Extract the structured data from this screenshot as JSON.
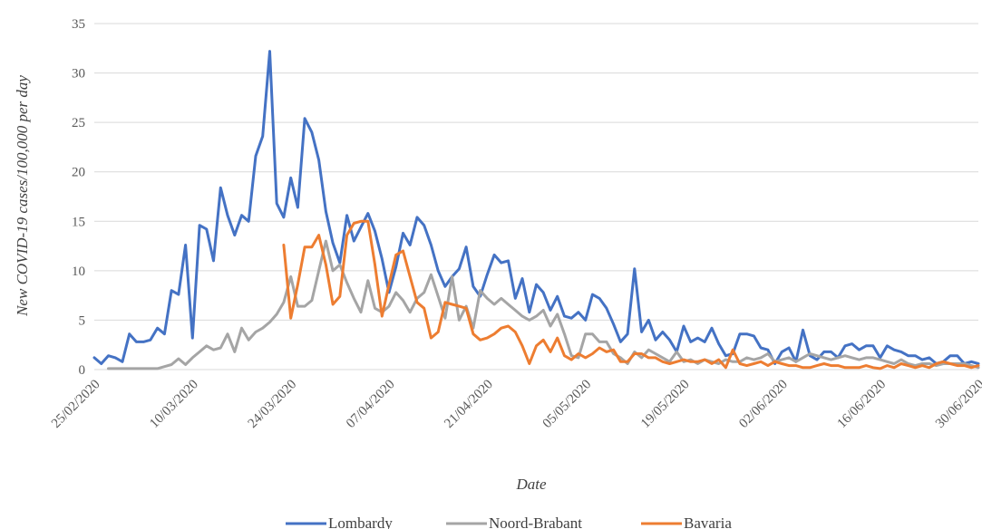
{
  "chart_data": {
    "type": "line",
    "title": "",
    "xlabel": "Date",
    "ylabel": "New COVID-19 cases/100,000 per day",
    "x_start": "2020-02-25",
    "x_end": "2020-06-30",
    "ylim": [
      0,
      35
    ],
    "y_ticks": [
      0,
      5,
      10,
      15,
      20,
      25,
      30,
      35
    ],
    "x_tick_labels": [
      "25/02/2020",
      "10/03/2020",
      "24/03/2020",
      "07/04/2020",
      "21/04/2020",
      "05/05/2020",
      "19/05/2020",
      "02/06/2020",
      "16/06/2020",
      "30/06/2020"
    ],
    "grid": "horizontal",
    "legend_position": "bottom",
    "series": [
      {
        "name": "Lombardy",
        "color": "#4472C4",
        "x": [
          "2020-02-25",
          "2020-02-26",
          "2020-02-27",
          "2020-02-28",
          "2020-02-29",
          "2020-03-01",
          "2020-03-02",
          "2020-03-03",
          "2020-03-04",
          "2020-03-05",
          "2020-03-06",
          "2020-03-07",
          "2020-03-08",
          "2020-03-09",
          "2020-03-10",
          "2020-03-11",
          "2020-03-12",
          "2020-03-13",
          "2020-03-14",
          "2020-03-15",
          "2020-03-16",
          "2020-03-17",
          "2020-03-18",
          "2020-03-19",
          "2020-03-20",
          "2020-03-21",
          "2020-03-22",
          "2020-03-23",
          "2020-03-24",
          "2020-03-25",
          "2020-03-26",
          "2020-03-27",
          "2020-03-28",
          "2020-03-29",
          "2020-03-30",
          "2020-03-31",
          "2020-04-01",
          "2020-04-02",
          "2020-04-03",
          "2020-04-04",
          "2020-04-05",
          "2020-04-06",
          "2020-04-07",
          "2020-04-08",
          "2020-04-09",
          "2020-04-10",
          "2020-04-11",
          "2020-04-12",
          "2020-04-13",
          "2020-04-14",
          "2020-04-15",
          "2020-04-16",
          "2020-04-17",
          "2020-04-18",
          "2020-04-19",
          "2020-04-20",
          "2020-04-21",
          "2020-04-22",
          "2020-04-23",
          "2020-04-24",
          "2020-04-25",
          "2020-04-26",
          "2020-04-27",
          "2020-04-28",
          "2020-04-29",
          "2020-04-30",
          "2020-05-01",
          "2020-05-02",
          "2020-05-03",
          "2020-05-04",
          "2020-05-05",
          "2020-05-06",
          "2020-05-07",
          "2020-05-08",
          "2020-05-09",
          "2020-05-10",
          "2020-05-11",
          "2020-05-12",
          "2020-05-13",
          "2020-05-14",
          "2020-05-15",
          "2020-05-16",
          "2020-05-17",
          "2020-05-18",
          "2020-05-19",
          "2020-05-20",
          "2020-05-21",
          "2020-05-22",
          "2020-05-23",
          "2020-05-24",
          "2020-05-25",
          "2020-05-26",
          "2020-05-27",
          "2020-05-28",
          "2020-05-29",
          "2020-05-30",
          "2020-05-31",
          "2020-06-01",
          "2020-06-02",
          "2020-06-03",
          "2020-06-04",
          "2020-06-05",
          "2020-06-06",
          "2020-06-07",
          "2020-06-08",
          "2020-06-09",
          "2020-06-10",
          "2020-06-11",
          "2020-06-12",
          "2020-06-13",
          "2020-06-14",
          "2020-06-15",
          "2020-06-16",
          "2020-06-17",
          "2020-06-18",
          "2020-06-19",
          "2020-06-20",
          "2020-06-21",
          "2020-06-22",
          "2020-06-23",
          "2020-06-24",
          "2020-06-25",
          "2020-06-26",
          "2020-06-27",
          "2020-06-28",
          "2020-06-29",
          "2020-06-30"
        ],
        "values": [
          1.2,
          0.6,
          1.4,
          1.2,
          0.8,
          3.6,
          2.8,
          2.8,
          3.0,
          4.2,
          3.6,
          8.0,
          7.6,
          12.6,
          3.2,
          14.6,
          14.2,
          11.0,
          18.4,
          15.6,
          13.6,
          15.6,
          15.0,
          21.6,
          23.6,
          32.2,
          16.8,
          15.4,
          19.4,
          16.4,
          25.4,
          24.0,
          21.2,
          16.0,
          12.8,
          10.8,
          15.6,
          13.0,
          14.4,
          15.8,
          14.0,
          11.2,
          7.8,
          10.4,
          13.8,
          12.6,
          15.4,
          14.6,
          12.6,
          10.0,
          8.4,
          9.4,
          10.2,
          12.4,
          8.4,
          7.4,
          9.6,
          11.6,
          10.8,
          11.0,
          7.2,
          9.2,
          5.8,
          8.6,
          7.8,
          6.0,
          7.4,
          5.4,
          5.2,
          5.8,
          5.0,
          7.6,
          7.2,
          6.2,
          4.6,
          2.8,
          3.6,
          10.2,
          3.8,
          5.0,
          3.0,
          3.8,
          3.0,
          1.8,
          4.4,
          2.8,
          3.2,
          2.8,
          4.2,
          2.6,
          1.4,
          1.6,
          3.6,
          3.6,
          3.4,
          2.2,
          2.0,
          0.6,
          1.8,
          2.2,
          0.8,
          4.0,
          1.4,
          1.0,
          1.8,
          1.8,
          1.2,
          2.4,
          2.6,
          2.0,
          2.4,
          2.4,
          1.2,
          2.4,
          2.0,
          1.8,
          1.4,
          1.4,
          1.0,
          1.2,
          0.6,
          0.8,
          1.4,
          1.4,
          0.6,
          0.8,
          0.6
        ]
      },
      {
        "name": "Noord-Brabant",
        "color": "#A5A5A5",
        "x": [
          "2020-02-27",
          "2020-02-28",
          "2020-02-29",
          "2020-03-01",
          "2020-03-02",
          "2020-03-03",
          "2020-03-04",
          "2020-03-05",
          "2020-03-06",
          "2020-03-07",
          "2020-03-08",
          "2020-03-09",
          "2020-03-10",
          "2020-03-11",
          "2020-03-12",
          "2020-03-13",
          "2020-03-14",
          "2020-03-15",
          "2020-03-16",
          "2020-03-17",
          "2020-03-18",
          "2020-03-19",
          "2020-03-20",
          "2020-03-21",
          "2020-03-22",
          "2020-03-23",
          "2020-03-24",
          "2020-03-25",
          "2020-03-26",
          "2020-03-27",
          "2020-03-28",
          "2020-03-29",
          "2020-03-30",
          "2020-03-31",
          "2020-04-01",
          "2020-04-02",
          "2020-04-03",
          "2020-04-04",
          "2020-04-05",
          "2020-04-06",
          "2020-04-07",
          "2020-04-08",
          "2020-04-09",
          "2020-04-10",
          "2020-04-11",
          "2020-04-12",
          "2020-04-13",
          "2020-04-14",
          "2020-04-15",
          "2020-04-16",
          "2020-04-17",
          "2020-04-18",
          "2020-04-19",
          "2020-04-20",
          "2020-04-21",
          "2020-04-22",
          "2020-04-23",
          "2020-04-24",
          "2020-04-25",
          "2020-04-26",
          "2020-04-27",
          "2020-04-28",
          "2020-04-29",
          "2020-04-30",
          "2020-05-01",
          "2020-05-02",
          "2020-05-03",
          "2020-05-04",
          "2020-05-05",
          "2020-05-06",
          "2020-05-07",
          "2020-05-08",
          "2020-05-09",
          "2020-05-10",
          "2020-05-11",
          "2020-05-12",
          "2020-05-13",
          "2020-05-14",
          "2020-05-15",
          "2020-05-16",
          "2020-05-17",
          "2020-05-18",
          "2020-05-19",
          "2020-05-20",
          "2020-05-21",
          "2020-05-22",
          "2020-05-23",
          "2020-05-24",
          "2020-05-25",
          "2020-05-26",
          "2020-05-27",
          "2020-05-28",
          "2020-05-29",
          "2020-05-30",
          "2020-05-31",
          "2020-06-01",
          "2020-06-02",
          "2020-06-03",
          "2020-06-04",
          "2020-06-05",
          "2020-06-06",
          "2020-06-07",
          "2020-06-08",
          "2020-06-09",
          "2020-06-10",
          "2020-06-11",
          "2020-06-12",
          "2020-06-13",
          "2020-06-14",
          "2020-06-15",
          "2020-06-16",
          "2020-06-17",
          "2020-06-18",
          "2020-06-19",
          "2020-06-20",
          "2020-06-21",
          "2020-06-22",
          "2020-06-23",
          "2020-06-24",
          "2020-06-25",
          "2020-06-26",
          "2020-06-27",
          "2020-06-28",
          "2020-06-29",
          "2020-06-30"
        ],
        "values": [
          0.1,
          0.1,
          0.1,
          0.1,
          0.1,
          0.1,
          0.1,
          0.1,
          0.3,
          0.5,
          1.1,
          0.5,
          1.2,
          1.8,
          2.4,
          2.0,
          2.2,
          3.6,
          1.8,
          4.2,
          3.0,
          3.8,
          4.2,
          4.8,
          5.6,
          6.8,
          9.4,
          6.4,
          6.4,
          7.0,
          10.0,
          13.0,
          10.0,
          10.6,
          8.8,
          7.2,
          5.8,
          9.0,
          6.2,
          5.8,
          6.4,
          7.8,
          7.0,
          5.8,
          7.2,
          7.8,
          9.6,
          7.4,
          5.2,
          9.4,
          5.0,
          6.4,
          4.2,
          8.0,
          7.2,
          6.6,
          7.2,
          6.6,
          6.0,
          5.4,
          5.0,
          5.4,
          6.0,
          4.4,
          5.6,
          3.6,
          1.4,
          1.2,
          3.6,
          3.6,
          2.8,
          2.8,
          1.6,
          1.2,
          0.6,
          1.8,
          1.2,
          2.0,
          1.6,
          1.2,
          0.8,
          1.8,
          0.8,
          1.0,
          0.6,
          1.0,
          0.8,
          0.6,
          1.0,
          0.8,
          0.8,
          1.2,
          1.0,
          1.2,
          1.6,
          0.8,
          1.0,
          1.2,
          0.8,
          1.2,
          1.6,
          1.4,
          1.2,
          1.0,
          1.2,
          1.4,
          1.2,
          1.0,
          1.2,
          1.2,
          1.0,
          0.8,
          0.6,
          1.0,
          0.6,
          0.4,
          0.6,
          0.6,
          0.4,
          0.6,
          0.6,
          0.6,
          0.6,
          0.4,
          0.2
        ]
      },
      {
        "name": "Bavaria",
        "color": "#ED7D31",
        "x": [
          "2020-03-23",
          "2020-03-24",
          "2020-03-25",
          "2020-03-26",
          "2020-03-27",
          "2020-03-28",
          "2020-03-29",
          "2020-03-30",
          "2020-03-31",
          "2020-04-01",
          "2020-04-02",
          "2020-04-03",
          "2020-04-04",
          "2020-04-05",
          "2020-04-06",
          "2020-04-07",
          "2020-04-08",
          "2020-04-09",
          "2020-04-10",
          "2020-04-11",
          "2020-04-12",
          "2020-04-13",
          "2020-04-14",
          "2020-04-15",
          "2020-04-16",
          "2020-04-17",
          "2020-04-18",
          "2020-04-19",
          "2020-04-20",
          "2020-04-21",
          "2020-04-22",
          "2020-04-23",
          "2020-04-24",
          "2020-04-25",
          "2020-04-26",
          "2020-04-27",
          "2020-04-28",
          "2020-04-29",
          "2020-04-30",
          "2020-05-01",
          "2020-05-02",
          "2020-05-03",
          "2020-05-04",
          "2020-05-05",
          "2020-05-06",
          "2020-05-07",
          "2020-05-08",
          "2020-05-09",
          "2020-05-10",
          "2020-05-11",
          "2020-05-12",
          "2020-05-13",
          "2020-05-14",
          "2020-05-15",
          "2020-05-16",
          "2020-05-17",
          "2020-05-18",
          "2020-05-19",
          "2020-05-20",
          "2020-05-21",
          "2020-05-22",
          "2020-05-23",
          "2020-05-24",
          "2020-05-25",
          "2020-05-26",
          "2020-05-27",
          "2020-05-28",
          "2020-05-29",
          "2020-05-30",
          "2020-05-31",
          "2020-06-01",
          "2020-06-02",
          "2020-06-03",
          "2020-06-04",
          "2020-06-05",
          "2020-06-06",
          "2020-06-07",
          "2020-06-08",
          "2020-06-09",
          "2020-06-10",
          "2020-06-11",
          "2020-06-12",
          "2020-06-13",
          "2020-06-14",
          "2020-06-15",
          "2020-06-16",
          "2020-06-17",
          "2020-06-18",
          "2020-06-19",
          "2020-06-20",
          "2020-06-21",
          "2020-06-22",
          "2020-06-23",
          "2020-06-24",
          "2020-06-25",
          "2020-06-26",
          "2020-06-27",
          "2020-06-28",
          "2020-06-29",
          "2020-06-30"
        ],
        "values": [
          12.6,
          5.2,
          8.6,
          12.4,
          12.4,
          13.6,
          10.6,
          6.6,
          7.4,
          13.6,
          14.8,
          15.0,
          15.0,
          10.6,
          5.4,
          8.6,
          11.6,
          12.0,
          9.4,
          6.8,
          6.2,
          3.2,
          3.8,
          6.8,
          6.6,
          6.4,
          6.2,
          3.6,
          3.0,
          3.2,
          3.6,
          4.2,
          4.4,
          3.8,
          2.4,
          0.6,
          2.4,
          3.0,
          1.8,
          3.2,
          1.4,
          1.0,
          1.6,
          1.2,
          1.6,
          2.2,
          1.8,
          2.0,
          0.8,
          0.8,
          1.6,
          1.6,
          1.2,
          1.2,
          0.8,
          0.6,
          0.8,
          1.0,
          0.8,
          0.8,
          1.0,
          0.6,
          1.0,
          0.2,
          2.0,
          0.6,
          0.4,
          0.6,
          0.8,
          0.4,
          0.8,
          0.6,
          0.4,
          0.4,
          0.2,
          0.2,
          0.4,
          0.6,
          0.4,
          0.4,
          0.2,
          0.2,
          0.2,
          0.4,
          0.2,
          0.1,
          0.4,
          0.2,
          0.6,
          0.4,
          0.2,
          0.4,
          0.2,
          0.6,
          0.8,
          0.6,
          0.4,
          0.4,
          0.2,
          0.4
        ]
      }
    ]
  }
}
